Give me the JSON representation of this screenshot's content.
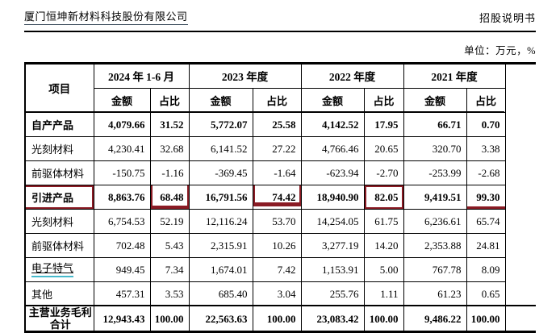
{
  "page_header": {
    "company": "厦门恒坤新材料科技股份有限公司",
    "doc_type": "招股说明书",
    "unit_note": "单位：万元，%"
  },
  "table": {
    "item_header": "项目",
    "amount_label": "金额",
    "ratio_label": "占比",
    "periods": [
      "2024 年 1-6 月",
      "2023 年度",
      "2022 年度",
      "2021 年度"
    ],
    "highlight_color": "#8a1b24",
    "rows": [
      {
        "label": "自产产品",
        "values": [
          "4,079.66",
          "31.52",
          "5,772.07",
          "25.58",
          "4,142.52",
          "17.95",
          "66.71",
          "0.70"
        ]
      },
      {
        "label": "光刻材料",
        "values": [
          "4,230.41",
          "32.68",
          "6,141.52",
          "27.22",
          "4,766.46",
          "20.65",
          "320.70",
          "3.38"
        ]
      },
      {
        "label": "前驱体材料",
        "values": [
          "-150.75",
          "-1.16",
          "-369.45",
          "-1.64",
          "-623.94",
          "-2.70",
          "-253.99",
          "-2.68"
        ]
      },
      {
        "label": "引进产品",
        "values": [
          "8,863.76",
          "68.48",
          "16,791.56",
          "74.42",
          "18,940.90",
          "82.05",
          "9,419.51",
          "99.30"
        ]
      },
      {
        "label": "光刻材料",
        "values": [
          "6,754.53",
          "52.19",
          "12,116.24",
          "53.70",
          "14,254.05",
          "61.75",
          "6,236.61",
          "65.74"
        ]
      },
      {
        "label": "前驱体材料",
        "values": [
          "702.48",
          "5.43",
          "2,315.91",
          "10.26",
          "3,277.19",
          "14.20",
          "2,353.88",
          "24.81"
        ]
      },
      {
        "label": "电子特气",
        "values": [
          "949.45",
          "7.34",
          "1,674.01",
          "7.42",
          "1,153.91",
          "5.00",
          "767.78",
          "8.09"
        ]
      },
      {
        "label": "其他",
        "values": [
          "457.31",
          "3.53",
          "685.40",
          "3.04",
          "255.76",
          "1.11",
          "61.23",
          "0.65"
        ]
      },
      {
        "label": "主营业务毛利合计",
        "values": [
          "12,943.43",
          "100.00",
          "22,563.63",
          "100.00",
          "23,083.42",
          "100.00",
          "9,486.22",
          "100.00"
        ]
      }
    ]
  }
}
